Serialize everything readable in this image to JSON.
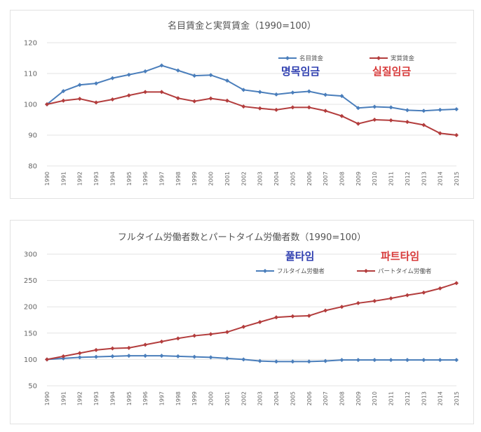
{
  "chart_data": [
    {
      "type": "line",
      "title": "名目賃金と実質賃金（1990=100）",
      "xlabel": "",
      "ylabel": "",
      "ylim": [
        80,
        120
      ],
      "yticks": [
        "80",
        "90",
        "100",
        "110",
        "120"
      ],
      "ytick_values": [
        80,
        90,
        100,
        110,
        120
      ],
      "grid": true,
      "legend_position": "top-right",
      "categories": [
        "1990",
        "1991",
        "1992",
        "1993",
        "1994",
        "1995",
        "1996",
        "1997",
        "1998",
        "1999",
        "2000",
        "2001",
        "2002",
        "2003",
        "2004",
        "2005",
        "2006",
        "2007",
        "2008",
        "2009",
        "2010",
        "2011",
        "2012",
        "2013",
        "2014",
        "2015"
      ],
      "series": [
        {
          "name": "名目賃金",
          "color": "#4a7ebb",
          "marker": "diamond",
          "values": [
            100,
            104.3,
            106.3,
            106.8,
            108.5,
            109.6,
            110.7,
            112.6,
            111.0,
            109.3,
            109.5,
            107.7,
            104.7,
            104.0,
            103.2,
            103.8,
            104.2,
            103.1,
            102.7,
            98.8,
            99.2,
            99.0,
            98.1,
            97.9,
            98.2,
            98.4
          ]
        },
        {
          "name": "実質賃金",
          "color": "#b33d3d",
          "marker": "diamond",
          "values": [
            100,
            101.2,
            101.8,
            100.6,
            101.6,
            102.9,
            104.0,
            104.0,
            102.0,
            101.0,
            101.9,
            101.2,
            99.3,
            98.7,
            98.2,
            99.0,
            99.0,
            97.9,
            96.2,
            93.7,
            95.0,
            94.8,
            94.3,
            93.3,
            90.6,
            90.0
          ]
        }
      ],
      "annotations": [
        {
          "text": "명목임금",
          "color": "#2f3fb0"
        },
        {
          "text": "실질임금",
          "color": "#d83b3b"
        }
      ]
    },
    {
      "type": "line",
      "title": "フルタイム労働者数とパートタイム労働者数（1990=100）",
      "xlabel": "",
      "ylabel": "",
      "ylim": [
        50,
        300
      ],
      "yticks": [
        "50",
        "100",
        "150",
        "200",
        "250",
        "300"
      ],
      "ytick_values": [
        50,
        100,
        150,
        200,
        250,
        300
      ],
      "grid": true,
      "legend_position": "top-right",
      "categories": [
        "1990",
        "1991",
        "1992",
        "1993",
        "1994",
        "1995",
        "1996",
        "1997",
        "1998",
        "1999",
        "2000",
        "2001",
        "2002",
        "2003",
        "2004",
        "2005",
        "2006",
        "2007",
        "2008",
        "2009",
        "2010",
        "2011",
        "2012",
        "2013",
        "2014",
        "2015"
      ],
      "series": [
        {
          "name": "フルタイム労働者",
          "color": "#4a7ebb",
          "marker": "diamond",
          "values": [
            100,
            102,
            104,
            105,
            106,
            107,
            107,
            107,
            106,
            105,
            104,
            102,
            100,
            97,
            96,
            96,
            96,
            97,
            99,
            99,
            99,
            99,
            99,
            99,
            99,
            99
          ]
        },
        {
          "name": "パートタイム労働者",
          "color": "#b33d3d",
          "marker": "diamond",
          "values": [
            100,
            106,
            112,
            118,
            121,
            122,
            128,
            134,
            140,
            145,
            148,
            152,
            162,
            171,
            180,
            182,
            183,
            193,
            200,
            207,
            211,
            216,
            222,
            227,
            235,
            245
          ]
        }
      ],
      "annotations": [
        {
          "text": "풀타임",
          "color": "#2f3fb0"
        },
        {
          "text": "파트타임",
          "color": "#d83b3b"
        }
      ]
    }
  ]
}
